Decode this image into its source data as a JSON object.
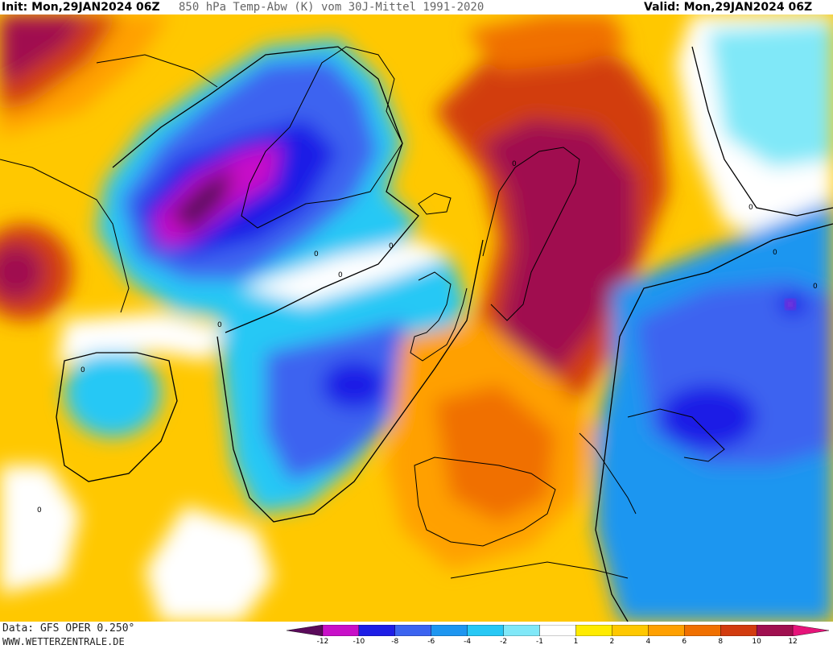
{
  "header": {
    "init": "Init: Mon,29JAN2024 06Z",
    "title": "850 hPa Temp-Abw (K) vom 30J-Mittel 1991-2020",
    "valid": "Valid: Mon,29JAN2024 06Z"
  },
  "footer": {
    "source": "Data: GFS OPER 0.250°",
    "site": "WWW.WETTERZENTRALE.DE"
  },
  "legend": {
    "ticks": [
      "-12",
      "-10",
      "-8",
      "-6",
      "-4",
      "-2",
      "-1",
      "1",
      "2",
      "4",
      "6",
      "8",
      "10",
      "12"
    ],
    "colors": [
      "#5a0a5a",
      "#c80fc8",
      "#1e1ee6",
      "#3c64f0",
      "#1e96f0",
      "#28c8f5",
      "#80e8f8",
      "#ffffff",
      "#ffeb00",
      "#ffc800",
      "#ffa000",
      "#f07000",
      "#d23c0f",
      "#a01050",
      "#e6147a"
    ]
  },
  "map": {
    "contour_labels": [
      "0",
      "0",
      "0",
      "0",
      "0",
      "0",
      "0",
      "0",
      "0",
      "0"
    ]
  }
}
